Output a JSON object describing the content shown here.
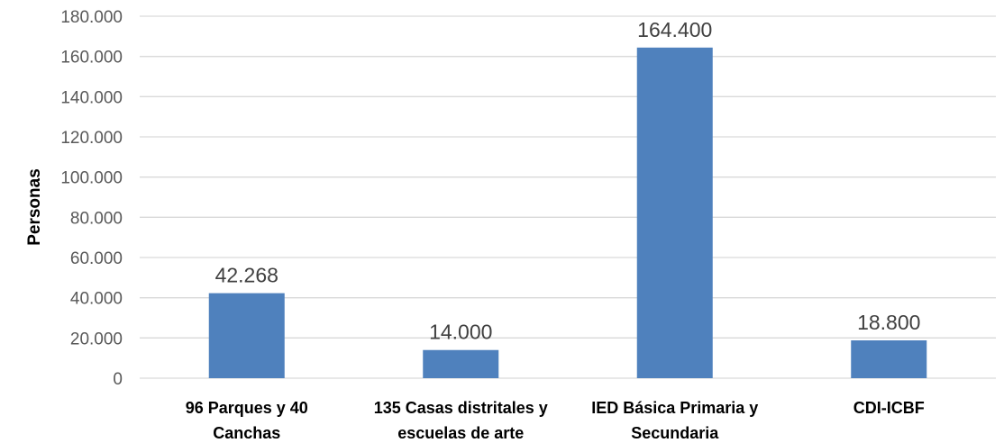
{
  "chart_data": {
    "type": "bar",
    "title": "",
    "xlabel": "",
    "ylabel": "Personas",
    "categories": [
      [
        "96 Parques y 40",
        "Canchas"
      ],
      [
        "135 Casas distritales y",
        "escuelas de arte"
      ],
      [
        "IED Básica Primaria y",
        "Secundaria"
      ],
      [
        "CDI-ICBF"
      ]
    ],
    "values": [
      42268,
      14000,
      164400,
      18800
    ],
    "data_labels": [
      "42.268",
      "14.000",
      "164.400",
      "18.800"
    ],
    "ylim": [
      0,
      180000
    ],
    "yticks": [
      0,
      20000,
      40000,
      60000,
      80000,
      100000,
      120000,
      140000,
      160000,
      180000
    ],
    "ytick_labels": [
      "0",
      "20.000",
      "40.000",
      "60.000",
      "80.000",
      "100.000",
      "120.000",
      "140.000",
      "160.000",
      "180.000"
    ],
    "grid": true,
    "legend": "none",
    "bar_color": "#4f81bd"
  }
}
